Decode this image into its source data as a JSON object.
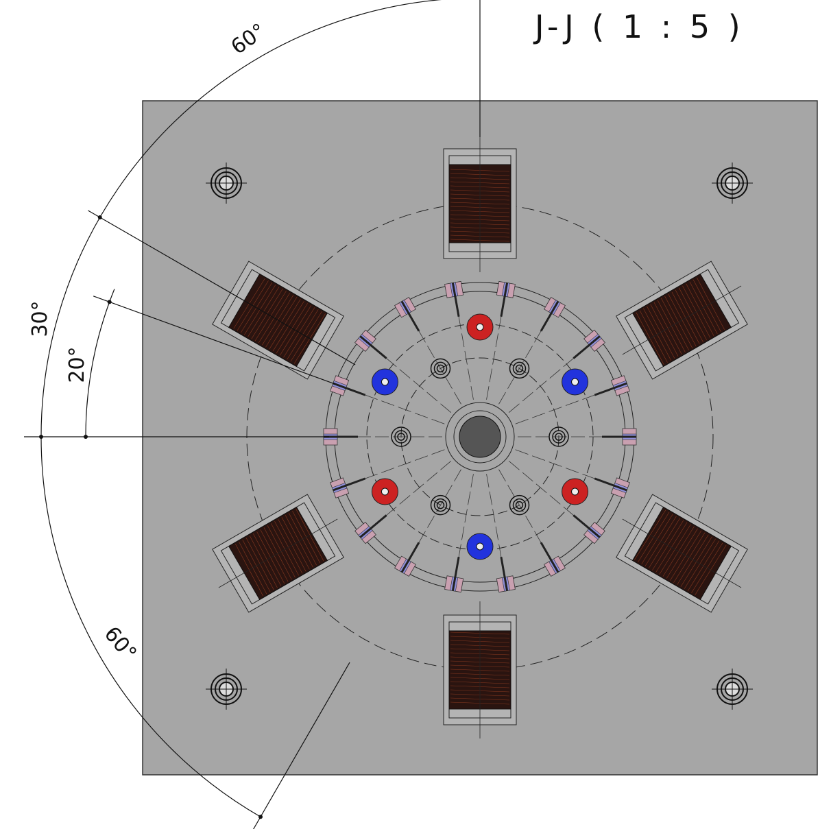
{
  "title": "J-J ( 1 : 5 )",
  "dimensions": [
    "60°",
    "30°",
    "20°",
    "60°"
  ]
}
